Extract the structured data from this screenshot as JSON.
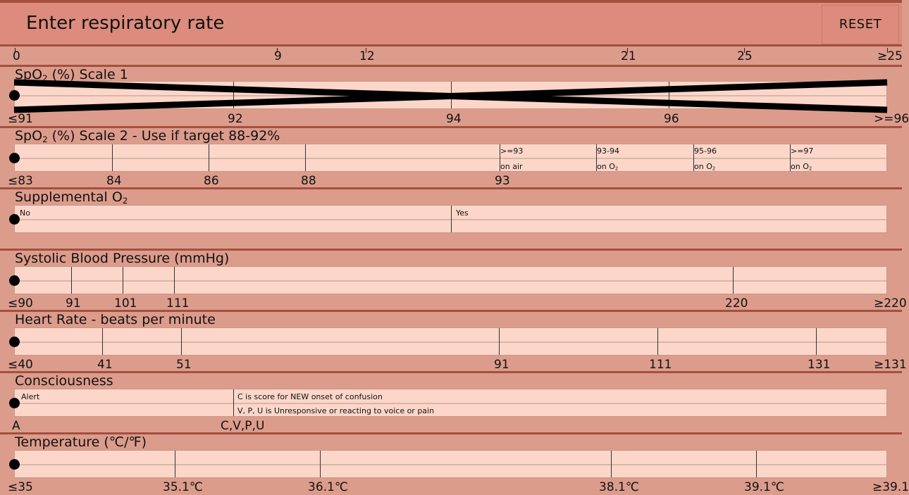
{
  "header": {
    "title": "Enter respiratory rate",
    "reset_label": "RESET"
  },
  "resp_scale": {
    "labels": [
      "0",
      "9",
      "12",
      "21",
      "25",
      "≥25"
    ]
  },
  "spo2_scale1": {
    "title_prefix": "SpO",
    "title_sub": "2",
    "title_suffix": " (%) Scale 1",
    "labels": [
      "≤91",
      "92",
      "94",
      "96",
      ">=96"
    ]
  },
  "spo2_scale2": {
    "title_prefix": "SpO",
    "title_sub": "2",
    "title_suffix": " (%) Scale 2 - Use if target 88-92%",
    "labels": [
      "≤83",
      "84",
      "86",
      "88",
      "93"
    ],
    "zones": [
      {
        "top": ">=93",
        "bottom": "on air",
        "sub": ""
      },
      {
        "top": "93-94",
        "bottom": "on O",
        "sub": "2"
      },
      {
        "top": "95-96",
        "bottom": "on O",
        "sub": "2"
      },
      {
        "top": ">=97",
        "bottom": "on O",
        "sub": "2"
      }
    ]
  },
  "supp_o2": {
    "title_prefix": "Supplemental O",
    "title_sub": "2",
    "options": [
      "No",
      "Yes"
    ]
  },
  "sbp": {
    "title": "Systolic Blood Pressure (mmHg)",
    "labels": [
      "≤90",
      "91",
      "101",
      "111",
      "220",
      "≥220"
    ]
  },
  "hr": {
    "title": "Heart Rate - beats per minute",
    "labels": [
      "≤40",
      "41",
      "51",
      "91",
      "111",
      "131",
      "≥131"
    ]
  },
  "consciousness": {
    "title": "Consciousness",
    "alert": "Alert",
    "note1": "C is score for NEW onset of confusion",
    "note2": "V, P, U is Unresponsive or reacting to voice or pain",
    "labels": [
      "A",
      "C,V,P,U"
    ]
  },
  "temp": {
    "title": "Temperature (℃/℉)",
    "labels": [
      "≤35",
      "35.1℃",
      "36.1℃",
      "38.1℃",
      "39.1℃",
      "≥39.1"
    ]
  },
  "colors": {
    "background": "#dc9c8c",
    "header": "#dc8b7c",
    "track": "#fcd7c9",
    "divider": "#a3503f"
  }
}
